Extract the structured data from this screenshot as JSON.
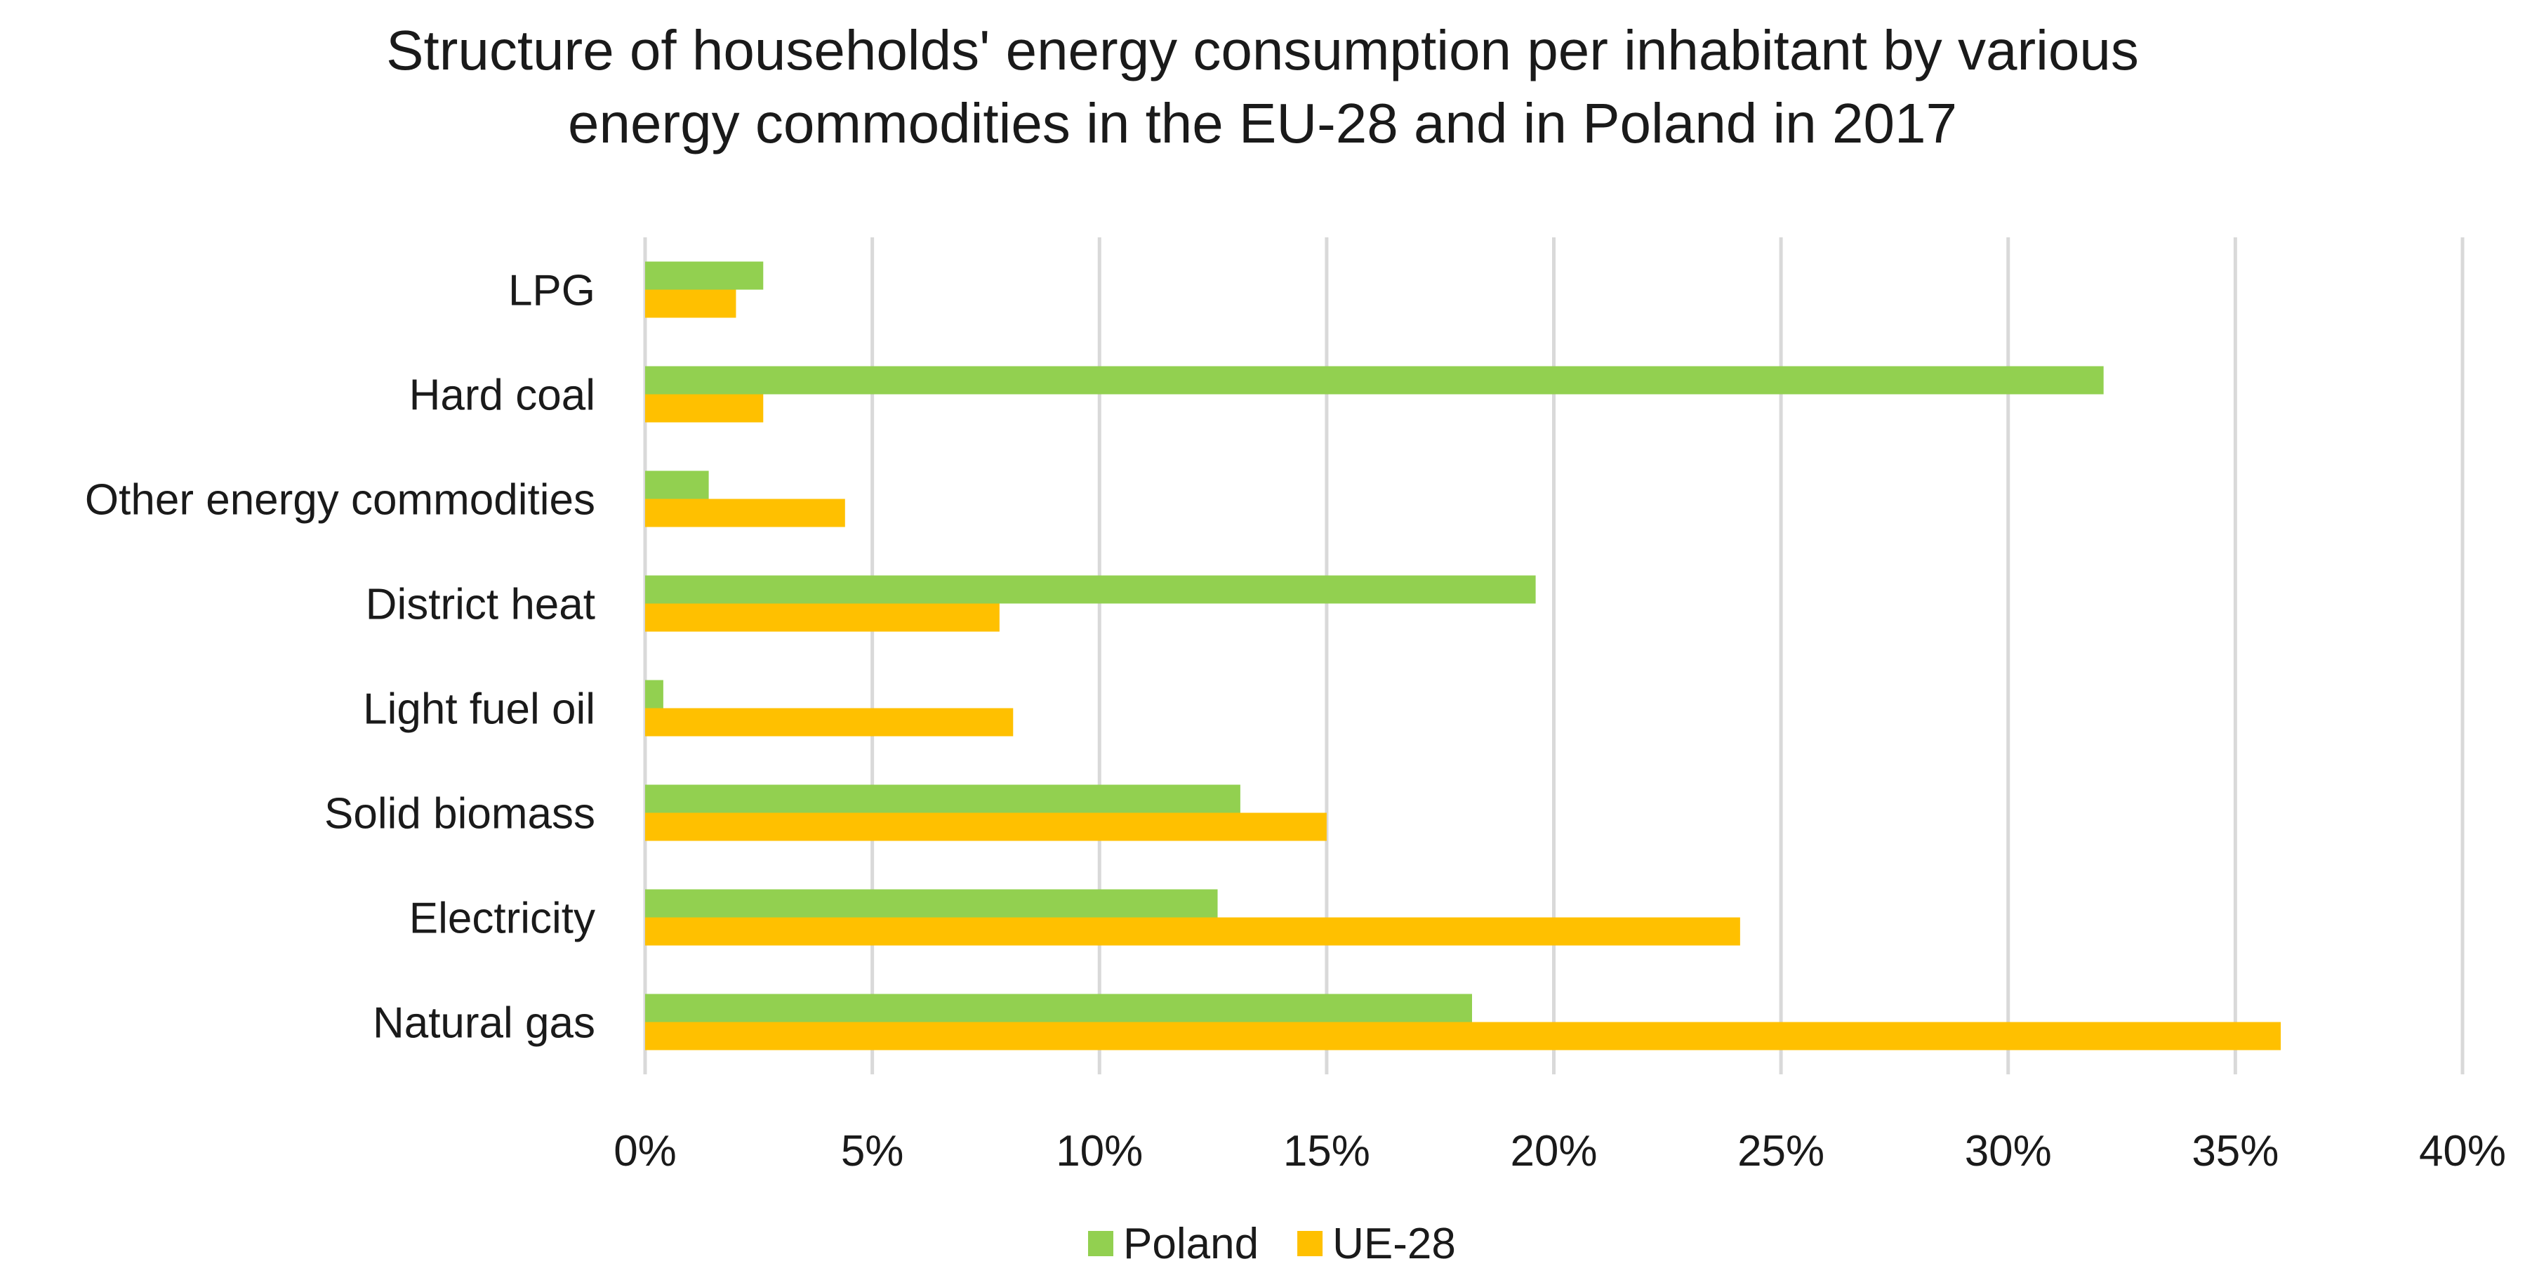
{
  "chart_data": {
    "type": "bar",
    "orientation": "horizontal",
    "title_line1": "Structure of households' energy consumption per inhabitant by various",
    "title_line2": "energy commodities in the EU-28 and in Poland in 2017",
    "categories": [
      "LPG",
      "Hard coal",
      "Other energy commodities",
      "District heat",
      "Light fuel oil",
      "Solid biomass",
      "Electricity",
      "Natural gas"
    ],
    "series": [
      {
        "name": "Poland",
        "color": "#92d050",
        "values": [
          2.6,
          32.1,
          1.4,
          19.6,
          0.4,
          13.1,
          12.6,
          18.2
        ]
      },
      {
        "name": "UE-28",
        "color": "#ffc000",
        "values": [
          2.0,
          2.6,
          4.4,
          7.8,
          8.1,
          15.0,
          24.1,
          36.0
        ]
      }
    ],
    "xlim": [
      0,
      40
    ],
    "xticks": [
      0,
      5,
      10,
      15,
      20,
      25,
      30,
      35,
      40
    ],
    "xtick_labels": [
      "0%",
      "5%",
      "10%",
      "15%",
      "20%",
      "25%",
      "30%",
      "35%",
      "40%"
    ],
    "grid": true,
    "legend_position": "bottom"
  }
}
